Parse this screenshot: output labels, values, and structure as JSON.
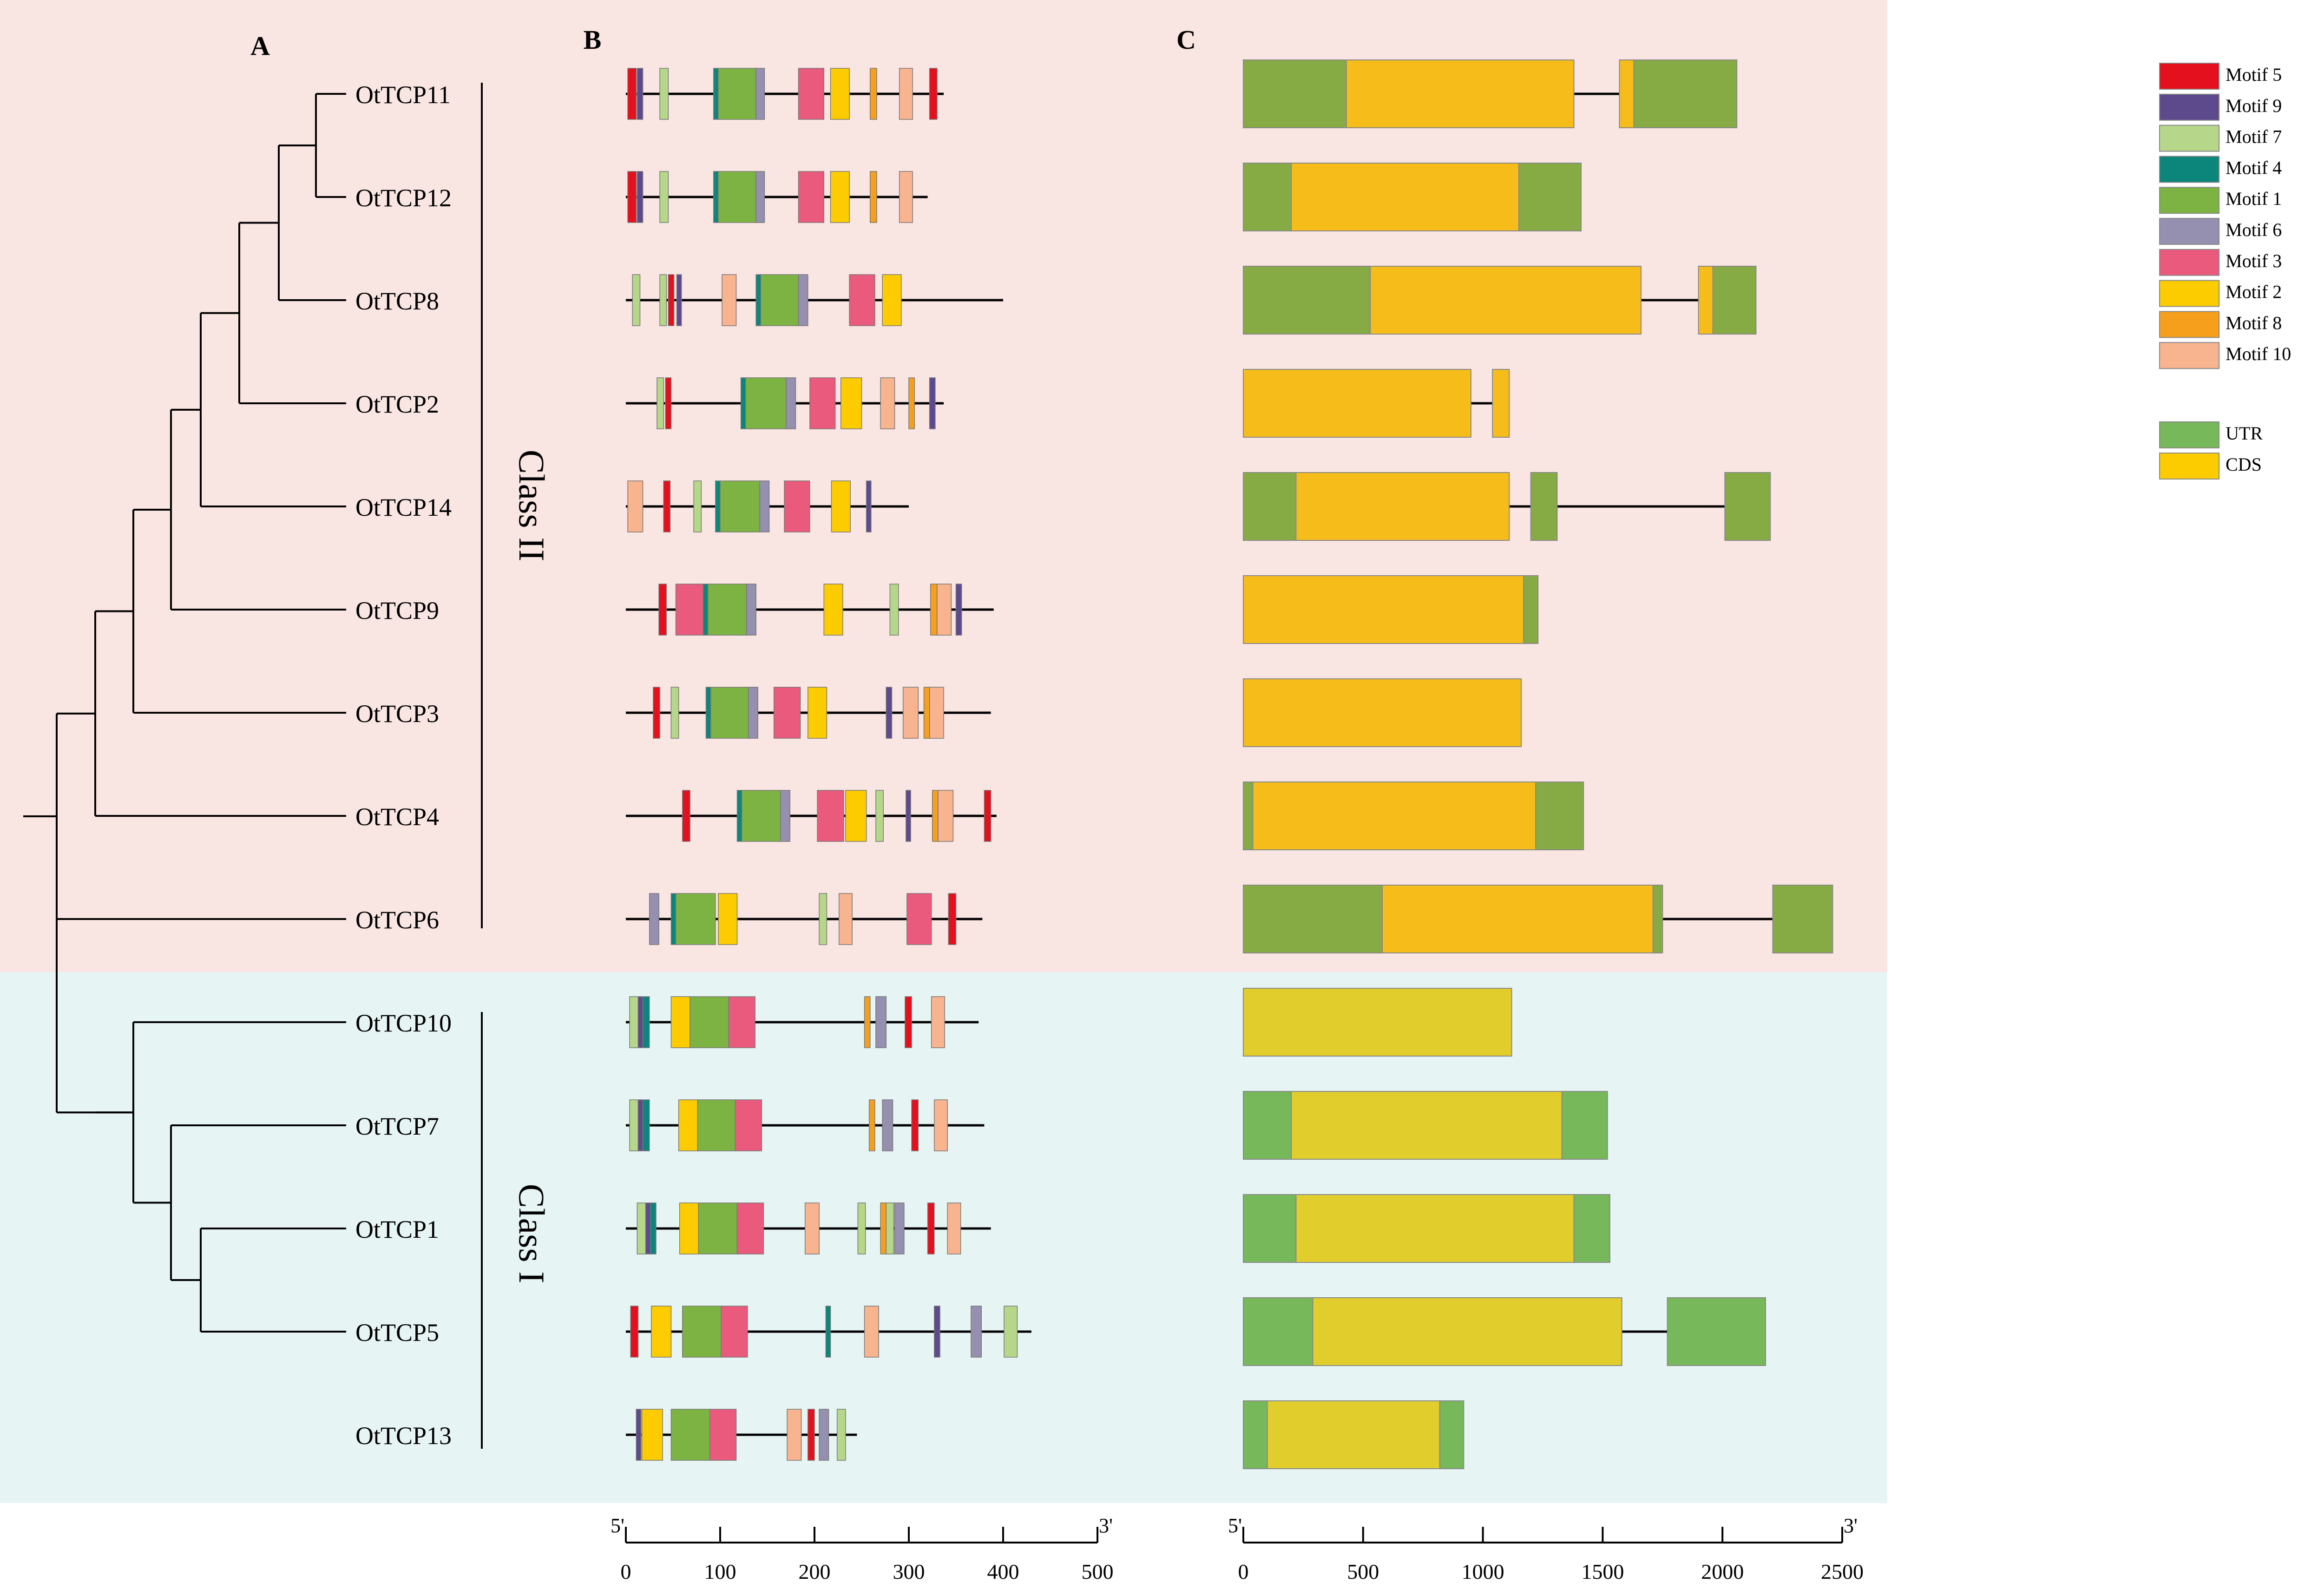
{
  "panels": {
    "a": "A",
    "b": "B",
    "c": "C"
  },
  "classes": {
    "class2": "Class II",
    "class1": "Class I"
  },
  "colors": {
    "motifs": {
      "m5": "#e4101d",
      "m9": "#5c4a8c",
      "m7": "#b6d78a",
      "m4": "#0c867a",
      "m1": "#7cb342",
      "m6": "#958fb0",
      "m3": "#e95a7d",
      "m2": "#fccc00",
      "m8": "#f59f1c",
      "m10": "#f7b48f"
    },
    "class2_bg": "#f9e5e2",
    "class1_bg": "#e6f4f4",
    "utr_class2": "#86ab45",
    "cds_class2": "#f6bd1a",
    "utr_class1": "#76b85a",
    "cds_class1": "#e1cd2c"
  },
  "legend": {
    "motifs": [
      {
        "key": "m5",
        "label": "Motif 5"
      },
      {
        "key": "m9",
        "label": "Motif 9"
      },
      {
        "key": "m7",
        "label": "Motif 7"
      },
      {
        "key": "m4",
        "label": "Motif 4"
      },
      {
        "key": "m1",
        "label": "Motif 1"
      },
      {
        "key": "m6",
        "label": "Motif 6"
      },
      {
        "key": "m3",
        "label": "Motif 3"
      },
      {
        "key": "m2",
        "label": "Motif 2"
      },
      {
        "key": "m8",
        "label": "Motif 8"
      },
      {
        "key": "m10",
        "label": "Motif 10"
      }
    ],
    "gene_parts": [
      {
        "key": "utr",
        "label": "UTR",
        "color": "#76b85a"
      },
      {
        "key": "cds",
        "label": "CDS",
        "color": "#fccc00"
      }
    ]
  },
  "scale_b": {
    "start_label": "5'",
    "end_label": "3'",
    "ticks": [
      0,
      100,
      200,
      300,
      400,
      500
    ]
  },
  "scale_c": {
    "start_label": "5'",
    "end_label": "3'",
    "ticks": [
      0,
      500,
      1000,
      1500,
      2000,
      2500
    ]
  },
  "genes": [
    {
      "name": "OtTCP11",
      "class": "II",
      "protein_length": 337,
      "motifs": [
        [
          "m5",
          2,
          11
        ],
        [
          "m9",
          12,
          18
        ],
        [
          "m7",
          36,
          45
        ],
        [
          "m4",
          93,
          98
        ],
        [
          "m1",
          98,
          138
        ],
        [
          "m6",
          138,
          147
        ],
        [
          "m3",
          183,
          210
        ],
        [
          "m2",
          217,
          237
        ],
        [
          "m8",
          259,
          266
        ],
        [
          "m10",
          290,
          304
        ],
        [
          "m5",
          322,
          330
        ]
      ],
      "gene_length": 2060,
      "segments": [
        [
          "utr",
          0,
          430
        ],
        [
          "cds",
          430,
          1380
        ],
        [
          "intron",
          1380,
          1570
        ],
        [
          "cds",
          1570,
          1630
        ],
        [
          "utr",
          1630,
          2060
        ]
      ]
    },
    {
      "name": "OtTCP12",
      "class": "II",
      "protein_length": 320,
      "motifs": [
        [
          "m5",
          2,
          11
        ],
        [
          "m9",
          12,
          18
        ],
        [
          "m7",
          36,
          45
        ],
        [
          "m4",
          93,
          98
        ],
        [
          "m1",
          98,
          138
        ],
        [
          "m6",
          138,
          147
        ],
        [
          "m3",
          183,
          210
        ],
        [
          "m2",
          217,
          237
        ],
        [
          "m8",
          259,
          266
        ],
        [
          "m10",
          290,
          304
        ]
      ],
      "gene_length": 1410,
      "segments": [
        [
          "utr",
          0,
          200
        ],
        [
          "cds",
          200,
          1150
        ],
        [
          "utr",
          1150,
          1410
        ]
      ]
    },
    {
      "name": "OtTCP8",
      "class": "II",
      "protein_length": 400,
      "motifs": [
        [
          "m7",
          7,
          15
        ],
        [
          "m7",
          36,
          43
        ],
        [
          "m5",
          45,
          51
        ],
        [
          "m9",
          54,
          59
        ],
        [
          "m10",
          102,
          117
        ],
        [
          "m4",
          138,
          143
        ],
        [
          "m1",
          143,
          183
        ],
        [
          "m6",
          183,
          193
        ],
        [
          "m3",
          237,
          264
        ],
        [
          "m2",
          272,
          292
        ]
      ],
      "gene_length": 2140,
      "segments": [
        [
          "utr",
          0,
          530
        ],
        [
          "cds",
          530,
          1660
        ],
        [
          "intron",
          1660,
          1900
        ],
        [
          "cds",
          1900,
          1960
        ],
        [
          "utr",
          1960,
          2140
        ]
      ]
    },
    {
      "name": "OtTCP2",
      "class": "II",
      "protein_length": 337,
      "motifs": [
        [
          "m7",
          33,
          40
        ],
        [
          "m5",
          42,
          48
        ],
        [
          "m4",
          122,
          127
        ],
        [
          "m1",
          127,
          170
        ],
        [
          "m6",
          170,
          180
        ],
        [
          "m3",
          195,
          222
        ],
        [
          "m2",
          228,
          250
        ],
        [
          "m10",
          270,
          285
        ],
        [
          "m8",
          300,
          306
        ],
        [
          "m9",
          322,
          328
        ]
      ],
      "gene_length": 1110,
      "segments": [
        [
          "cds",
          0,
          950
        ],
        [
          "intron",
          950,
          1040
        ],
        [
          "cds",
          1040,
          1110
        ]
      ]
    },
    {
      "name": "OtTCP14",
      "class": "II",
      "protein_length": 300,
      "motifs": [
        [
          "m10",
          2,
          18
        ],
        [
          "m5",
          40,
          47
        ],
        [
          "m7",
          72,
          80
        ],
        [
          "m4",
          95,
          100
        ],
        [
          "m1",
          100,
          142
        ],
        [
          "m6",
          142,
          152
        ],
        [
          "m3",
          168,
          195
        ],
        [
          "m2",
          218,
          238
        ],
        [
          "m9",
          255,
          260
        ]
      ],
      "gene_length": 2200,
      "segments": [
        [
          "utr",
          0,
          220
        ],
        [
          "cds",
          220,
          1110
        ],
        [
          "intron",
          1110,
          1200
        ],
        [
          "utr",
          1200,
          1310
        ],
        [
          "intron",
          1310,
          2010
        ],
        [
          "utr",
          2010,
          2200
        ]
      ]
    },
    {
      "name": "OtTCP9",
      "class": "II",
      "protein_length": 390,
      "motifs": [
        [
          "m5",
          35,
          43
        ],
        [
          "m3",
          53,
          82
        ],
        [
          "m4",
          82,
          87
        ],
        [
          "m1",
          87,
          128
        ],
        [
          "m6",
          128,
          138
        ],
        [
          "m2",
          210,
          230
        ],
        [
          "m7",
          280,
          289
        ],
        [
          "m8",
          323,
          330
        ],
        [
          "m10",
          330,
          345
        ],
        [
          "m9",
          350,
          356
        ]
      ],
      "gene_length": 1230,
      "segments": [
        [
          "cds",
          0,
          1170
        ],
        [
          "utr",
          1170,
          1230
        ]
      ]
    },
    {
      "name": "OtTCP3",
      "class": "II",
      "protein_length": 387,
      "motifs": [
        [
          "m5",
          29,
          36
        ],
        [
          "m7",
          48,
          56
        ],
        [
          "m4",
          85,
          90
        ],
        [
          "m1",
          90,
          130
        ],
        [
          "m6",
          130,
          140
        ],
        [
          "m3",
          157,
          185
        ],
        [
          "m2",
          193,
          213
        ],
        [
          "m9",
          276,
          282
        ],
        [
          "m10",
          294,
          310
        ],
        [
          "m8",
          316,
          322
        ],
        [
          "m10",
          322,
          337
        ]
      ],
      "gene_length": 1160,
      "segments": [
        [
          "cds",
          0,
          1160
        ]
      ]
    },
    {
      "name": "OtTCP4",
      "class": "II",
      "protein_length": 393,
      "motifs": [
        [
          "m5",
          60,
          68
        ],
        [
          "m4",
          118,
          123
        ],
        [
          "m1",
          123,
          164
        ],
        [
          "m6",
          164,
          174
        ],
        [
          "m3",
          203,
          231
        ],
        [
          "m2",
          233,
          255
        ],
        [
          "m7",
          265,
          273
        ],
        [
          "m9",
          297,
          302
        ],
        [
          "m8",
          325,
          331
        ],
        [
          "m10",
          331,
          347
        ],
        [
          "m5",
          380,
          387
        ]
      ],
      "gene_length": 1420,
      "segments": [
        [
          "utr",
          0,
          40
        ],
        [
          "cds",
          40,
          1220
        ],
        [
          "utr",
          1220,
          1420
        ]
      ]
    },
    {
      "name": "OtTCP6",
      "class": "II",
      "protein_length": 378,
      "motifs": [
        [
          "m6",
          25,
          35
        ],
        [
          "m4",
          48,
          53
        ],
        [
          "m1",
          53,
          95
        ],
        [
          "m2",
          98,
          118
        ],
        [
          "m7",
          205,
          213
        ],
        [
          "m10",
          226,
          240
        ],
        [
          "m3",
          298,
          324
        ],
        [
          "m5",
          342,
          350
        ]
      ],
      "gene_length": 2460,
      "segments": [
        [
          "utr",
          0,
          580
        ],
        [
          "cds",
          580,
          1710
        ],
        [
          "utr",
          1710,
          1750
        ],
        [
          "intron",
          1750,
          2210
        ],
        [
          "utr",
          2210,
          2460
        ]
      ]
    },
    {
      "name": "OtTCP10",
      "class": "I",
      "protein_length": 374,
      "motifs": [
        [
          "m7",
          4,
          13
        ],
        [
          "m9",
          13,
          18
        ],
        [
          "m4",
          18,
          25
        ],
        [
          "m2",
          48,
          68
        ],
        [
          "m1",
          68,
          109
        ],
        [
          "m3",
          109,
          137
        ],
        [
          "m8",
          253,
          259
        ],
        [
          "m6",
          265,
          276
        ],
        [
          "m5",
          296,
          303
        ],
        [
          "m10",
          324,
          338
        ]
      ],
      "gene_length": 1120,
      "segments": [
        [
          "cds",
          0,
          1120
        ]
      ]
    },
    {
      "name": "OtTCP7",
      "class": "I",
      "protein_length": 380,
      "motifs": [
        [
          "m7",
          4,
          13
        ],
        [
          "m9",
          13,
          18
        ],
        [
          "m4",
          18,
          25
        ],
        [
          "m2",
          56,
          76
        ],
        [
          "m1",
          76,
          116
        ],
        [
          "m3",
          116,
          144
        ],
        [
          "m8",
          258,
          264
        ],
        [
          "m6",
          272,
          283
        ],
        [
          "m5",
          303,
          310
        ],
        [
          "m10",
          327,
          341
        ]
      ],
      "gene_length": 1520,
      "segments": [
        [
          "utr",
          0,
          200
        ],
        [
          "cds",
          200,
          1330
        ],
        [
          "utr",
          1330,
          1520
        ]
      ]
    },
    {
      "name": "OtTCP1",
      "class": "I",
      "protein_length": 387,
      "motifs": [
        [
          "m7",
          12,
          21
        ],
        [
          "m9",
          21,
          26
        ],
        [
          "m4",
          26,
          32
        ],
        [
          "m2",
          57,
          77
        ],
        [
          "m1",
          77,
          118
        ],
        [
          "m3",
          118,
          146
        ],
        [
          "m10",
          190,
          205
        ],
        [
          "m7",
          246,
          254
        ],
        [
          "m8",
          270,
          276
        ],
        [
          "m7",
          276,
          284
        ],
        [
          "m6",
          285,
          295
        ],
        [
          "m5",
          320,
          327
        ],
        [
          "m10",
          341,
          355
        ]
      ],
      "gene_length": 1530,
      "segments": [
        [
          "utr",
          0,
          220
        ],
        [
          "cds",
          220,
          1380
        ],
        [
          "utr",
          1380,
          1530
        ]
      ]
    },
    {
      "name": "OtTCP5",
      "class": "I",
      "protein_length": 430,
      "motifs": [
        [
          "m5",
          5,
          13
        ],
        [
          "m2",
          27,
          48
        ],
        [
          "m1",
          60,
          101
        ],
        [
          "m3",
          101,
          129
        ],
        [
          "m4",
          212,
          217
        ],
        [
          "m10",
          253,
          268
        ],
        [
          "m9",
          327,
          333
        ],
        [
          "m6",
          366,
          377
        ],
        [
          "m7",
          401,
          415
        ]
      ],
      "gene_length": 2180,
      "segments": [
        [
          "utr",
          0,
          290
        ],
        [
          "cds",
          290,
          1580
        ],
        [
          "intron",
          1580,
          1770
        ],
        [
          "utr",
          1770,
          2180
        ]
      ]
    },
    {
      "name": "OtTCP13",
      "class": "I",
      "protein_length": 245,
      "motifs": [
        [
          "m9",
          11,
          16
        ],
        [
          "m2",
          17,
          39
        ],
        [
          "m1",
          48,
          89
        ],
        [
          "m3",
          89,
          117
        ],
        [
          "m10",
          171,
          186
        ],
        [
          "m5",
          193,
          200
        ],
        [
          "m6",
          205,
          215
        ],
        [
          "m7",
          224,
          233
        ]
      ],
      "gene_length": 920,
      "segments": [
        [
          "utr",
          0,
          100
        ],
        [
          "cds",
          100,
          820
        ],
        [
          "utr",
          820,
          920
        ]
      ]
    }
  ]
}
